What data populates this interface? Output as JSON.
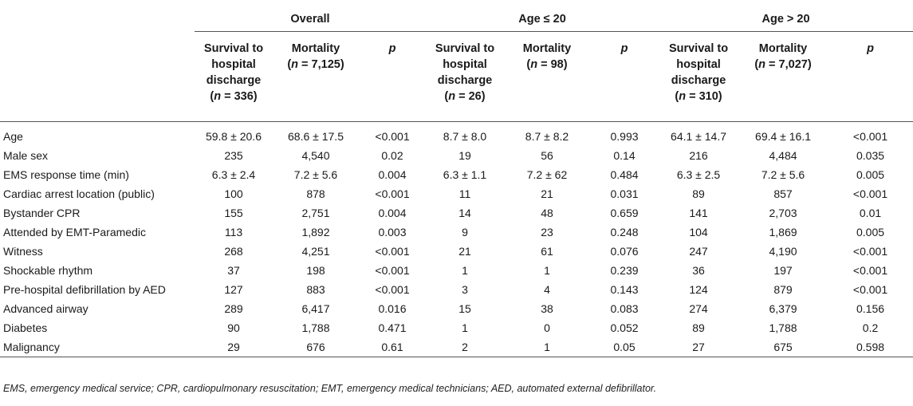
{
  "groups": {
    "overall": "Overall",
    "young": "Age ≤ 20",
    "old": "Age > 20"
  },
  "subheaders": {
    "survival_l1": "Survival to",
    "survival_l2": "hospital",
    "survival_l3": "discharge",
    "n_open": "(",
    "n_var": "n",
    "n_close": ")",
    "mortality": "Mortality",
    "p": "p",
    "overall": {
      "survival_n": " = 336",
      "mortality_n": " = 7,125"
    },
    "young": {
      "survival_n": " = 26",
      "mortality_n": " = 98"
    },
    "old": {
      "survival_n": " = 310",
      "mortality_n": " = 7,027"
    }
  },
  "rows": [
    {
      "label": "Age",
      "v": [
        "59.8 ± 20.6",
        "68.6 ± 17.5",
        "<0.001",
        "8.7 ± 8.0",
        "8.7 ± 8.2",
        "0.993",
        "64.1 ± 14.7",
        "69.4 ± 16.1",
        "<0.001"
      ]
    },
    {
      "label": "Male sex",
      "v": [
        "235",
        "4,540",
        "0.02",
        "19",
        "56",
        "0.14",
        "216",
        "4,484",
        "0.035"
      ]
    },
    {
      "label": "EMS response time (min)",
      "v": [
        "6.3 ± 2.4",
        "7.2 ± 5.6",
        "0.004",
        "6.3 ± 1.1",
        "7.2 ± 62",
        "0.484",
        "6.3 ± 2.5",
        "7.2 ± 5.6",
        "0.005"
      ]
    },
    {
      "label": "Cardiac arrest location (public)",
      "v": [
        "100",
        "878",
        "<0.001",
        "11",
        "21",
        "0.031",
        "89",
        "857",
        "<0.001"
      ]
    },
    {
      "label": "Bystander CPR",
      "v": [
        "155",
        "2,751",
        "0.004",
        "14",
        "48",
        "0.659",
        "141",
        "2,703",
        "0.01"
      ]
    },
    {
      "label": "Attended by EMT-Paramedic",
      "v": [
        "113",
        "1,892",
        "0.003",
        "9",
        "23",
        "0.248",
        "104",
        "1,869",
        "0.005"
      ]
    },
    {
      "label": "Witness",
      "v": [
        "268",
        "4,251",
        "<0.001",
        "21",
        "61",
        "0.076",
        "247",
        "4,190",
        "<0.001"
      ]
    },
    {
      "label": "Shockable rhythm",
      "v": [
        "37",
        "198",
        "<0.001",
        "1",
        "1",
        "0.239",
        "36",
        "197",
        "<0.001"
      ]
    },
    {
      "label": "Pre-hospital defibrillation by AED",
      "v": [
        "127",
        "883",
        "<0.001",
        "3",
        "4",
        "0.143",
        "124",
        "879",
        "<0.001"
      ]
    },
    {
      "label": "Advanced airway",
      "v": [
        "289",
        "6,417",
        "0.016",
        "15",
        "38",
        "0.083",
        "274",
        "6,379",
        "0.156"
      ]
    },
    {
      "label": "Diabetes",
      "v": [
        "90",
        "1,788",
        "0.471",
        "1",
        "0",
        "0.052",
        "89",
        "1,788",
        "0.2"
      ]
    },
    {
      "label": "Malignancy",
      "v": [
        "29",
        "676",
        "0.61",
        "2",
        "1",
        "0.05",
        "27",
        "675",
        "0.598"
      ]
    }
  ],
  "footnote": "EMS, emergency medical service; CPR, cardiopulmonary resuscitation; EMT, emergency medical technicians; AED, automated external defibrillator."
}
